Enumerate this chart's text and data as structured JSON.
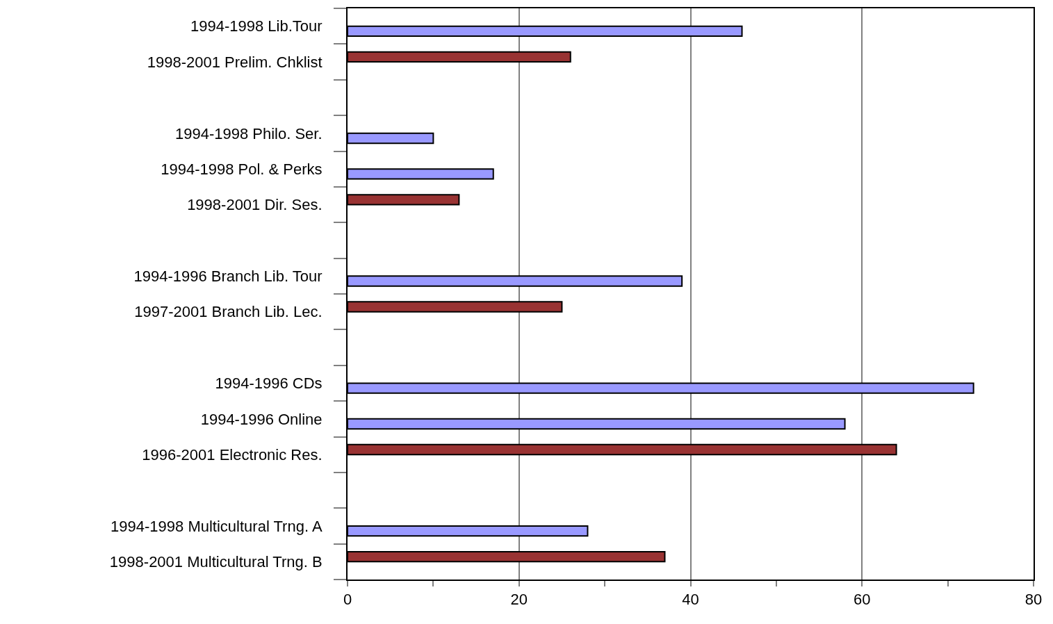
{
  "chart_data": {
    "type": "bar",
    "orientation": "horizontal",
    "categories": [
      "1994-1998 Lib.Tour",
      "1998-2001 Prelim. Chklist",
      null,
      "1994-1998 Philo. Ser.",
      "1994-1998 Pol. & Perks",
      "1998-2001 Dir. Ses.",
      null,
      "1994-1996 Branch Lib. Tour",
      "1997-2001 Branch Lib. Lec.",
      null,
      "1994-1996 CDs",
      "1994-1996 Online",
      "1996-2001 Electronic Res.",
      null,
      "1994-1998 Multicultural Trng. A",
      "1998-2001 Multicultural Trng. B"
    ],
    "series": [
      {
        "color": "#993333",
        "values": [
          null,
          26,
          null,
          null,
          null,
          13,
          null,
          null,
          25,
          null,
          null,
          null,
          64,
          null,
          null,
          37
        ]
      },
      {
        "color": "#9999ff",
        "values": [
          46,
          null,
          null,
          10,
          17,
          null,
          null,
          39,
          null,
          null,
          73,
          58,
          null,
          null,
          28,
          null
        ]
      }
    ],
    "xlim": [
      0,
      80
    ],
    "xticks": [
      0,
      {
        "value": 10,
        "label": null
      },
      20,
      {
        "value": 30,
        "label": null
      },
      40,
      {
        "value": 50,
        "label": null
      },
      60,
      {
        "value": 70,
        "label": null
      },
      80
    ],
    "grid": "x"
  }
}
